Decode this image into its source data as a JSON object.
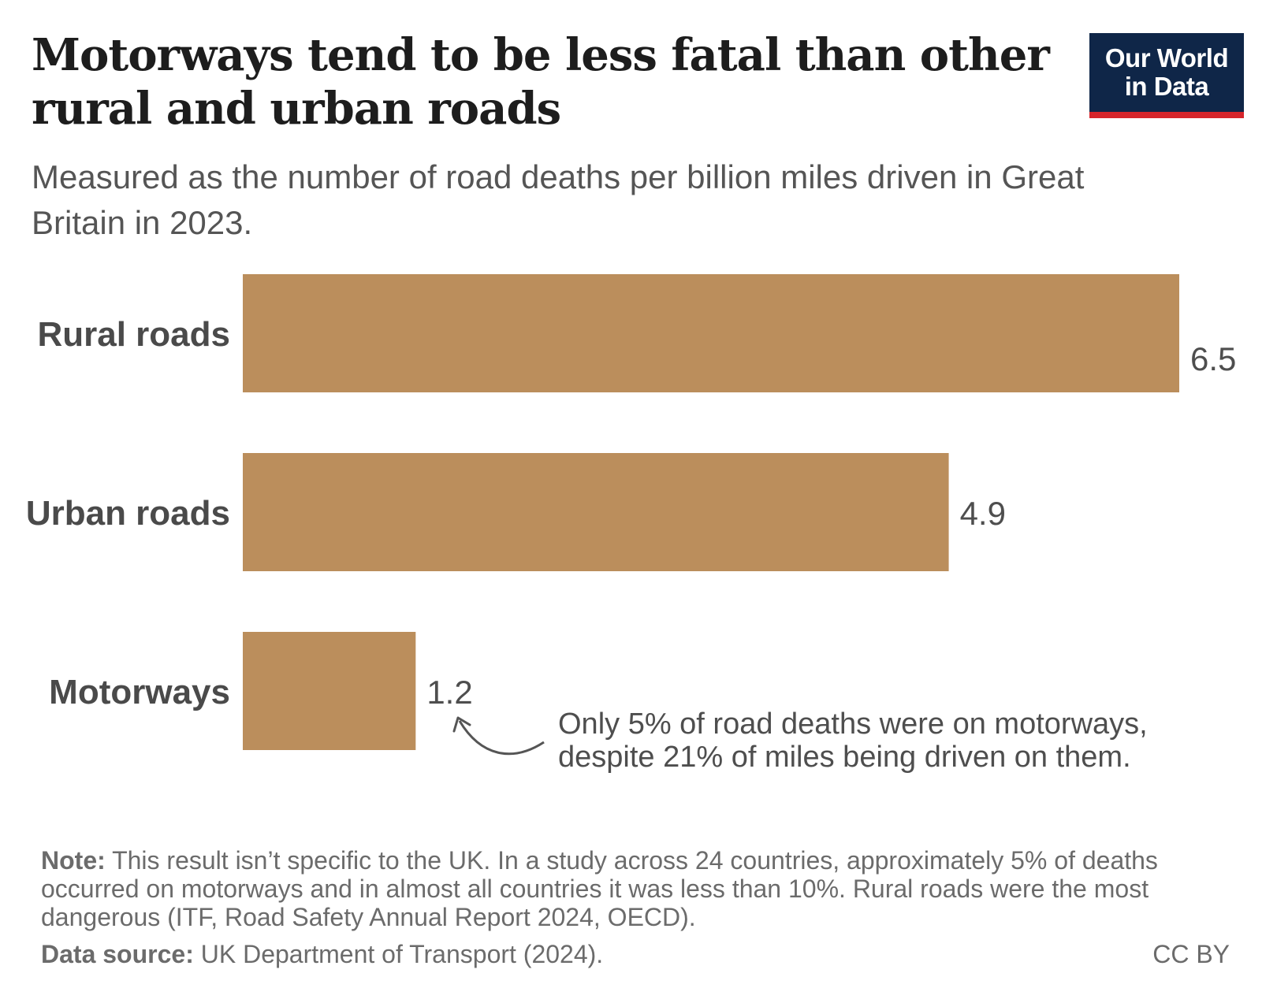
{
  "header": {
    "title": "Motorways tend to be less fatal than other rural and urban roads",
    "subtitle": "Measured as the number of road deaths per billion miles driven in Great Britain in 2023."
  },
  "logo": {
    "line1": "Our World",
    "line2": "in Data"
  },
  "chart_data": {
    "type": "bar",
    "orientation": "horizontal",
    "title": "Motorways tend to be less fatal than other rural and urban roads",
    "subtitle": "Measured as the number of road deaths per billion miles driven in Great Britain in 2023.",
    "categories": [
      "Rural roads",
      "Urban roads",
      "Motorways"
    ],
    "values": [
      6.5,
      4.9,
      1.2
    ],
    "value_labels": [
      "6.5",
      "4.9",
      "1.2"
    ],
    "xlim": [
      0,
      6.5
    ],
    "grid": false,
    "xlabel": "",
    "ylabel": "",
    "bar_color": "#bb8e5c",
    "annotation": {
      "target": "Motorways",
      "line1": "Only 5% of road deaths were on motorways,",
      "line2": "despite 21% of miles being driven on them."
    }
  },
  "footer": {
    "note_label": "Note:",
    "note_text": "This result isn’t specific to the UK. In a study across 24 countries, approximately 5% of deaths occurred on motorways and in almost all countries it was less than 10%. Rural roads were the most dangerous (ITF, Road Safety Annual Report 2024, OECD).",
    "source_label": "Data source:",
    "source_text": "UK Department of Transport (2024).",
    "license": "CC BY"
  },
  "colors": {
    "bar": "#bb8e5c",
    "logo_bg": "#0f2648",
    "logo_accent": "#d6252b",
    "title": "#1d1d1d",
    "text": "#555555"
  }
}
